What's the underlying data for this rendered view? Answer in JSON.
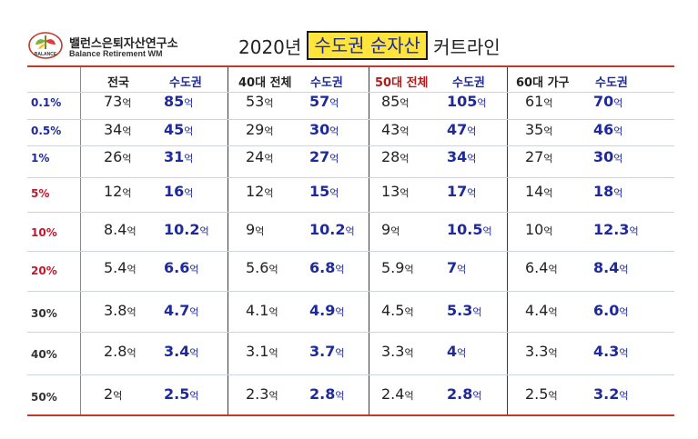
{
  "header": {
    "org_name": "밸런스은퇴자산연구소",
    "org_sub": "Balance Retirement WM",
    "logo_text": "BALANCE",
    "title_prefix": "2020년",
    "title_highlight": "수도권 순자산",
    "title_suffix": "커트라인"
  },
  "table": {
    "unit": "억",
    "columns": [
      "전국",
      "수도권",
      "40대 전체",
      "수도권",
      "50대 전체",
      "수도권",
      "60대 가구",
      "수도권"
    ],
    "rows": [
      {
        "label": "0.1%",
        "values": [
          "73",
          "85",
          "53",
          "57",
          "85",
          "105",
          "61",
          "70"
        ]
      },
      {
        "label": "0.5%",
        "values": [
          "34",
          "45",
          "29",
          "30",
          "43",
          "47",
          "35",
          "46"
        ]
      },
      {
        "label": "1%",
        "values": [
          "26",
          "31",
          "24",
          "27",
          "28",
          "34",
          "27",
          "30"
        ]
      },
      {
        "label": "5%",
        "values": [
          "12",
          "16",
          "12",
          "15",
          "13",
          "17",
          "14",
          "18"
        ]
      },
      {
        "label": "10%",
        "values": [
          "8.4",
          "10.2",
          "9",
          "10.2",
          "9",
          "10.5",
          "10",
          "12.3"
        ]
      },
      {
        "label": "20%",
        "values": [
          "5.4",
          "6.6",
          "5.6",
          "6.8",
          "5.9",
          "7",
          "6.4",
          "8.4"
        ]
      },
      {
        "label": "30%",
        "values": [
          "3.8",
          "4.7",
          "4.1",
          "4.9",
          "4.5",
          "5.3",
          "4.4",
          "6.0"
        ]
      },
      {
        "label": "40%",
        "values": [
          "2.8",
          "3.4",
          "3.1",
          "3.7",
          "3.3",
          "4",
          "3.3",
          "4.3"
        ]
      },
      {
        "label": "50%",
        "values": [
          "2",
          "2.5",
          "2.3",
          "2.8",
          "2.4",
          "2.8",
          "2.5",
          "3.2"
        ]
      }
    ]
  },
  "colors": {
    "accent_red": "#c0392b",
    "navy": "#1e2a9c",
    "highlight_yellow": "#ffe53b"
  }
}
